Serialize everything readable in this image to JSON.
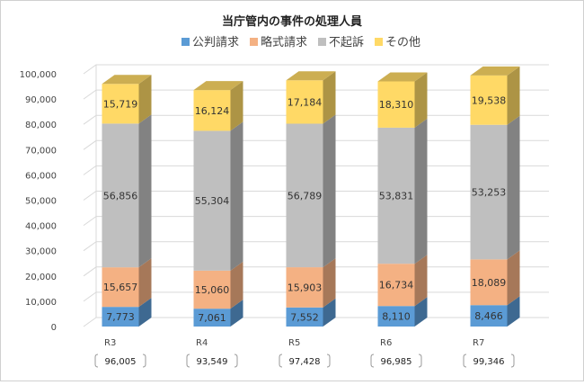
{
  "chart_data": {
    "type": "bar",
    "stacked": true,
    "title": "当庁管内の事件の処理人員",
    "categories": [
      "R3",
      "R4",
      "R5",
      "R6",
      "R7"
    ],
    "totals": [
      "96,005",
      "93,549",
      "97,428",
      "96,985",
      "99,346"
    ],
    "series": [
      {
        "name": "公判請求",
        "color": "#5B9BD5",
        "values": [
          7773,
          7061,
          7552,
          8110,
          8466
        ]
      },
      {
        "name": "略式請求",
        "color": "#F4B183",
        "values": [
          15657,
          15060,
          15903,
          16734,
          18089
        ]
      },
      {
        "name": "不起訴",
        "color": "#BFBFBF",
        "values": [
          56856,
          55304,
          56789,
          53831,
          53253
        ]
      },
      {
        "name": "その他",
        "color": "#FFD966",
        "values": [
          15719,
          16124,
          17184,
          18310,
          19538
        ]
      }
    ],
    "ylim": [
      0,
      100000
    ],
    "yticks": [
      "0",
      "10,000",
      "20,000",
      "30,000",
      "40,000",
      "50,000",
      "60,000",
      "70,000",
      "80,000",
      "90,000",
      "100,000"
    ],
    "legend_position": "top",
    "grid": true
  }
}
